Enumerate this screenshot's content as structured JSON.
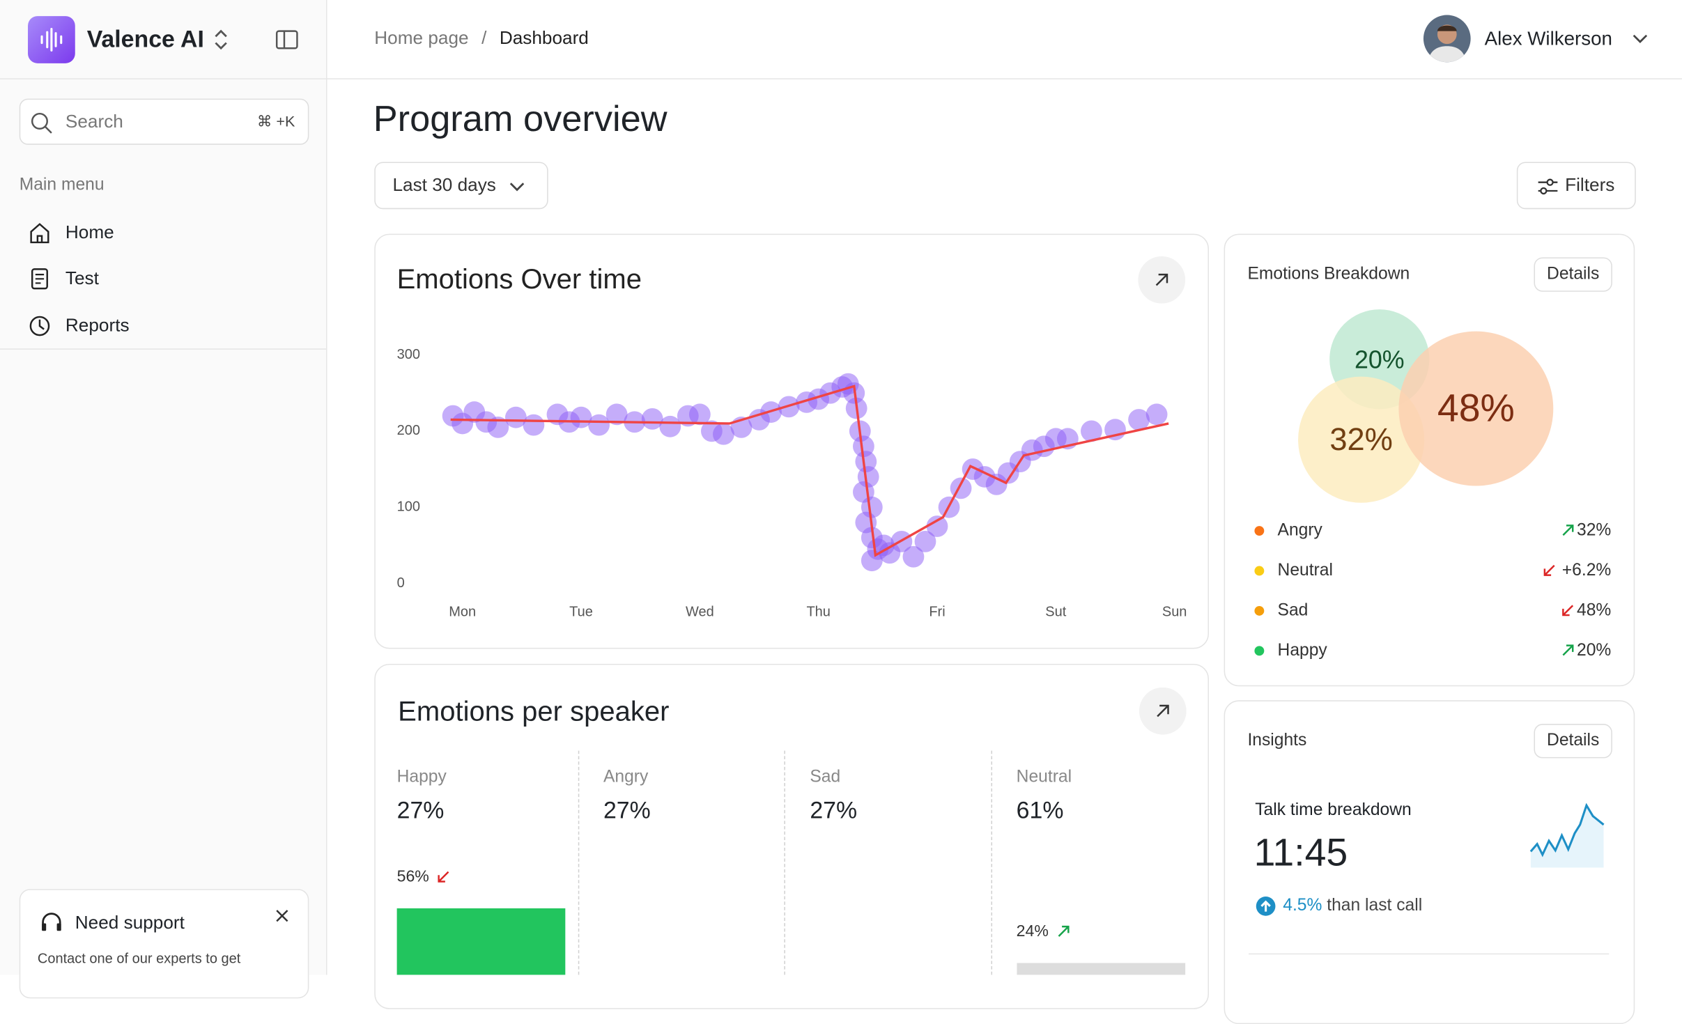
{
  "app": {
    "name": "Valence AI"
  },
  "search": {
    "placeholder": "Search",
    "shortcut": "⌘ +K"
  },
  "menu": {
    "title": "Main menu",
    "items": [
      "Home",
      "Test",
      "Reports"
    ]
  },
  "support": {
    "title": "Need support",
    "text": "Contact one of our experts to get"
  },
  "breadcrumb": [
    "Home page",
    "Dashboard"
  ],
  "user": {
    "name": "Alex Wilkerson"
  },
  "page_title": "Program overview",
  "range": "Last 30 days",
  "filters": "Filters",
  "chart_data": {
    "type": "line",
    "title": "Emotions Over time",
    "xlim": [
      -0.2,
      6.1
    ],
    "xticks": [
      {
        "value": 0,
        "label": "Mon"
      },
      {
        "value": 1,
        "label": "Tue"
      },
      {
        "value": 2,
        "label": "Wed"
      },
      {
        "value": 3,
        "label": "Thu"
      },
      {
        "value": 4,
        "label": "Fri"
      },
      {
        "value": 5,
        "label": "Sut"
      },
      {
        "value": 6,
        "label": "Sun"
      }
    ],
    "ylim": [
      0,
      300
    ],
    "yticks": [
      0,
      100,
      200,
      300
    ],
    "series": [
      {
        "type": "scatter",
        "color": "#8b5cf6",
        "x": [
          -0.08,
          0,
          0.1,
          0.2,
          0.3,
          0.45,
          0.6,
          0.8,
          0.9,
          1.0,
          1.15,
          1.3,
          1.45,
          1.6,
          1.75,
          1.9,
          2.0,
          2.1,
          2.2,
          2.35,
          2.5,
          2.6,
          2.75,
          2.9,
          3.0,
          3.1,
          3.2,
          3.25,
          3.3,
          3.32,
          3.35,
          3.38,
          3.4,
          3.42,
          3.38,
          3.45,
          3.4,
          3.45,
          3.5,
          3.45,
          3.55,
          3.6,
          3.7,
          3.8,
          3.9,
          4.0,
          4.1,
          4.2,
          4.3,
          4.4,
          4.5,
          4.6,
          4.7,
          4.8,
          4.9,
          5.0,
          5.1,
          5.3,
          5.5,
          5.7,
          5.85
        ],
        "values": [
          220,
          210,
          225,
          212,
          205,
          218,
          208,
          222,
          212,
          218,
          208,
          222,
          212,
          216,
          206,
          220,
          222,
          200,
          196,
          205,
          215,
          225,
          232,
          238,
          242,
          250,
          258,
          262,
          250,
          230,
          200,
          180,
          160,
          140,
          120,
          100,
          80,
          60,
          45,
          30,
          50,
          40,
          55,
          35,
          55,
          75,
          100,
          125,
          150,
          140,
          130,
          145,
          160,
          175,
          180,
          190,
          190,
          200,
          202,
          215,
          222
        ]
      },
      {
        "type": "line",
        "color": "#ef4444",
        "x": [
          -0.1,
          2.25,
          3.3,
          3.48,
          4.05,
          4.28,
          4.58,
          4.73,
          5.95
        ],
        "values": [
          215,
          210,
          259,
          37,
          87,
          154,
          132,
          168,
          210
        ]
      }
    ]
  },
  "breakdown": {
    "title": "Emotions Breakdown",
    "details": "Details",
    "bubbles": [
      {
        "label": "20%",
        "value": 20,
        "color": "#bfe9d2",
        "text_color": "#14532d"
      },
      {
        "label": "32%",
        "value": 32,
        "color": "#fdecc0",
        "text_color": "#713f12"
      },
      {
        "label": "48%",
        "value": 48,
        "color": "#fbd0b0",
        "text_color": "#7c2d12"
      }
    ],
    "legend": [
      {
        "name": "Angry",
        "color": "#f97316",
        "change": "32%",
        "trend": "up"
      },
      {
        "name": "Neutral",
        "color": "#facc15",
        "change": "+6.2%",
        "trend": "down"
      },
      {
        "name": "Sad",
        "color": "#f59e0b",
        "change": "48%",
        "trend": "down"
      },
      {
        "name": "Happy",
        "color": "#22c55e",
        "change": "20%",
        "trend": "up"
      }
    ]
  },
  "speaker": {
    "title": "Emotions per speaker",
    "columns": [
      {
        "name": "Happy",
        "value": "27%",
        "change": "56%",
        "trend": "down"
      },
      {
        "name": "Angry",
        "value": "27%"
      },
      {
        "name": "Sad",
        "value": "27%"
      },
      {
        "name": "Neutral",
        "value": "61%",
        "change": "24%",
        "trend": "up"
      }
    ]
  },
  "insights": {
    "title": "Insights",
    "details": "Details",
    "metric_title": "Talk time breakdown",
    "metric": "11:45",
    "change": "4.5%",
    "change_text": "than last call"
  }
}
